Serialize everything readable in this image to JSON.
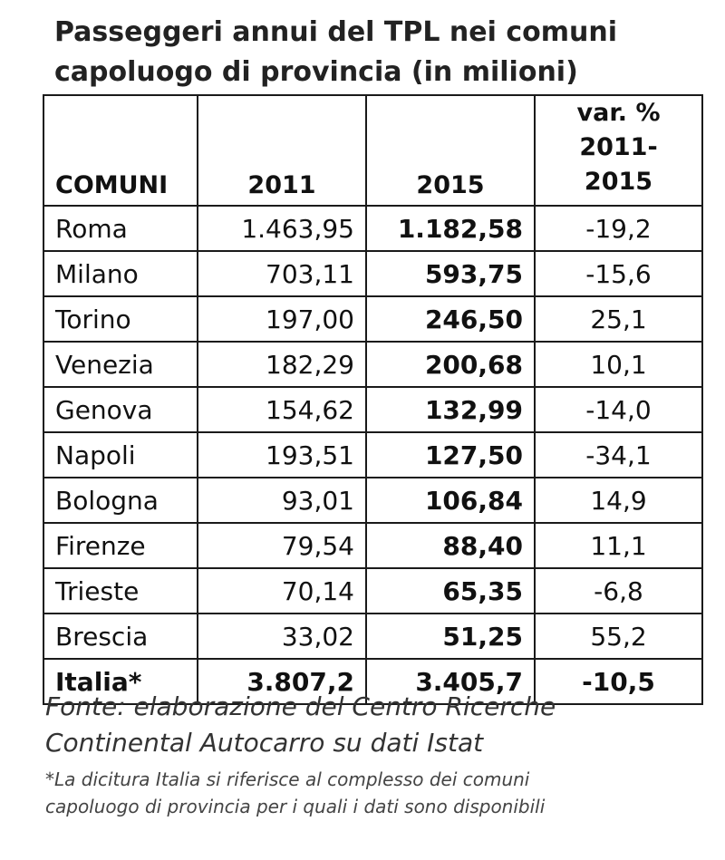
{
  "title": {
    "line1": "Passeggeri annui del TPL nei comuni",
    "line2": "capoluogo di provincia (in milioni)"
  },
  "table": {
    "headers": {
      "comuni": "COMUNI",
      "y2011": "2011",
      "y2015": "2015",
      "var_line1": "var. %",
      "var_line2": "2011-2015"
    },
    "rows": [
      {
        "comune": "Roma",
        "v2011": "1.463,95",
        "v2015": "1.182,58",
        "var": "-19,2"
      },
      {
        "comune": "Milano",
        "v2011": "703,11",
        "v2015": "593,75",
        "var": "-15,6"
      },
      {
        "comune": "Torino",
        "v2011": "197,00",
        "v2015": "246,50",
        "var": "25,1"
      },
      {
        "comune": "Venezia",
        "v2011": "182,29",
        "v2015": "200,68",
        "var": "10,1"
      },
      {
        "comune": "Genova",
        "v2011": "154,62",
        "v2015": "132,99",
        "var": "-14,0"
      },
      {
        "comune": "Napoli",
        "v2011": "193,51",
        "v2015": "127,50",
        "var": "-34,1"
      },
      {
        "comune": "Bologna",
        "v2011": "93,01",
        "v2015": "106,84",
        "var": "14,9"
      },
      {
        "comune": "Firenze",
        "v2011": "79,54",
        "v2015": "88,40",
        "var": "11,1"
      },
      {
        "comune": "Trieste",
        "v2011": "70,14",
        "v2015": "65,35",
        "var": "-6,8"
      },
      {
        "comune": "Brescia",
        "v2011": "33,02",
        "v2015": "51,25",
        "var": "55,2"
      }
    ],
    "total": {
      "comune": "Italia*",
      "v2011": "3.807,2",
      "v2015": "3.405,7",
      "var": "-10,5"
    }
  },
  "source": {
    "line1": "Fonte: elaborazione del Centro Ricerche",
    "line2": "Continental Autocarro su dati Istat"
  },
  "note": {
    "line1": "*La dicitura Italia si riferisce al complesso dei comuni",
    "line2": "capoluogo di provincia per i quali i dati sono disponibili"
  }
}
